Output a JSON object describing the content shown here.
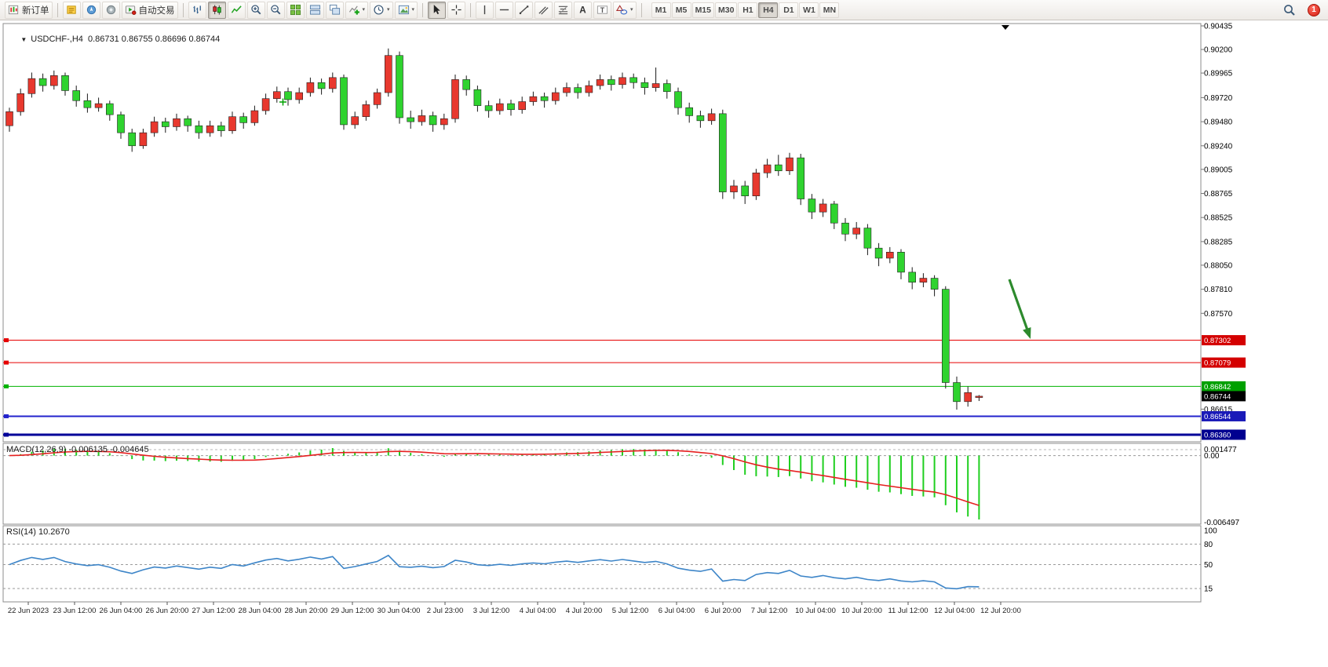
{
  "toolbar": {
    "new_order": "新订单",
    "auto_trading": "自动交易",
    "timeframes": [
      "M1",
      "M5",
      "M15",
      "M30",
      "H1",
      "H4",
      "D1",
      "W1",
      "MN"
    ],
    "active_timeframe": "H4",
    "notification_count": "1"
  },
  "chart_data": {
    "type": "candlestick",
    "symbol": "USDCHF-",
    "timeframe": "H4",
    "symbol_line": "USDCHF-,H4  0.86731 0.86755 0.86696 0.86744",
    "last_candle": {
      "open": "0.86731",
      "high": "0.86755",
      "low": "0.86696",
      "close": "0.86744"
    },
    "ylim": [
      0.8636,
      0.90435
    ],
    "colors": {
      "bull": "#e8382e",
      "bear": "#2fd32f",
      "wick": "#1a1a1a",
      "macd_hist": "#1fcf1f",
      "macd_signal": "#e62020",
      "rsi_line": "#3d85c8",
      "arrow": "#2d8a2d"
    },
    "price_axis_labels": [
      "0.90435",
      "0.90200",
      "0.89965",
      "0.89720",
      "0.89480",
      "0.89240",
      "0.89005",
      "0.88765",
      "0.88525",
      "0.88285",
      "0.88050",
      "0.87810",
      "0.87570",
      "0.86615"
    ],
    "hlines": [
      {
        "value": 0.87302,
        "label": "0.87302",
        "color": "#e60000",
        "badge": "#d40000",
        "width": 1
      },
      {
        "value": 0.87079,
        "label": "0.87079",
        "color": "#e60000",
        "badge": "#d40000",
        "width": 1
      },
      {
        "value": 0.86842,
        "label": "0.86842",
        "color": "#00b300",
        "badge": "#00a000",
        "width": 1
      },
      {
        "value": 0.86544,
        "label": "0.86544",
        "color": "#2323cc",
        "badge": "#1a1ab8",
        "width": 2
      },
      {
        "value": 0.8636,
        "label": "0.86360",
        "color": "#000099",
        "badge": "#000090",
        "width": 3
      }
    ],
    "current_price": {
      "value": 0.86744,
      "label": "0.86744",
      "badge": "#000000"
    },
    "candles": [
      [
        0.8944,
        0.8962,
        0.8938,
        0.8958
      ],
      [
        0.8958,
        0.8981,
        0.8954,
        0.8976
      ],
      [
        0.8976,
        0.8997,
        0.8972,
        0.8991
      ],
      [
        0.8991,
        0.8996,
        0.8978,
        0.8984
      ],
      [
        0.8984,
        0.8999,
        0.898,
        0.8994
      ],
      [
        0.8994,
        0.8997,
        0.8974,
        0.8979
      ],
      [
        0.8979,
        0.8984,
        0.8963,
        0.8969
      ],
      [
        0.8969,
        0.8976,
        0.8957,
        0.8962
      ],
      [
        0.8962,
        0.8972,
        0.8958,
        0.8966
      ],
      [
        0.8966,
        0.8969,
        0.8949,
        0.8955
      ],
      [
        0.8955,
        0.8958,
        0.8931,
        0.8937
      ],
      [
        0.8937,
        0.8941,
        0.8918,
        0.8924
      ],
      [
        0.8924,
        0.8941,
        0.8921,
        0.8937
      ],
      [
        0.8937,
        0.8953,
        0.8933,
        0.8948
      ],
      [
        0.8948,
        0.8952,
        0.8937,
        0.8943
      ],
      [
        0.8943,
        0.8956,
        0.8939,
        0.8951
      ],
      [
        0.8951,
        0.8954,
        0.8938,
        0.8944
      ],
      [
        0.8944,
        0.8949,
        0.8931,
        0.8937
      ],
      [
        0.8937,
        0.8949,
        0.8933,
        0.8944
      ],
      [
        0.8944,
        0.8948,
        0.8933,
        0.8939
      ],
      [
        0.8939,
        0.8958,
        0.8936,
        0.8953
      ],
      [
        0.8953,
        0.8957,
        0.8941,
        0.8947
      ],
      [
        0.8947,
        0.8964,
        0.8944,
        0.8959
      ],
      [
        0.8959,
        0.8976,
        0.8955,
        0.8971
      ],
      [
        0.8971,
        0.8983,
        0.8967,
        0.8978
      ],
      [
        0.8978,
        0.8982,
        0.8964,
        0.897
      ],
      [
        0.897,
        0.8982,
        0.8966,
        0.8977
      ],
      [
        0.8977,
        0.8992,
        0.8973,
        0.8987
      ],
      [
        0.8987,
        0.8991,
        0.8975,
        0.8981
      ],
      [
        0.8981,
        0.8997,
        0.8977,
        0.8992
      ],
      [
        0.8992,
        0.8995,
        0.894,
        0.8945
      ],
      [
        0.8945,
        0.8958,
        0.8941,
        0.8953
      ],
      [
        0.8953,
        0.8969,
        0.8949,
        0.8965
      ],
      [
        0.8965,
        0.8981,
        0.8961,
        0.8977
      ],
      [
        0.8977,
        0.9021,
        0.8973,
        0.9014
      ],
      [
        0.9014,
        0.9018,
        0.8946,
        0.8952
      ],
      [
        0.8952,
        0.8959,
        0.8941,
        0.8948
      ],
      [
        0.8948,
        0.896,
        0.8944,
        0.8954
      ],
      [
        0.8954,
        0.8958,
        0.8938,
        0.8945
      ],
      [
        0.8945,
        0.8956,
        0.894,
        0.8951
      ],
      [
        0.8951,
        0.8995,
        0.8947,
        0.899
      ],
      [
        0.899,
        0.8994,
        0.8974,
        0.898
      ],
      [
        0.898,
        0.8984,
        0.8958,
        0.8964
      ],
      [
        0.8964,
        0.8969,
        0.8952,
        0.8959
      ],
      [
        0.8959,
        0.8971,
        0.8955,
        0.8966
      ],
      [
        0.8966,
        0.897,
        0.8954,
        0.896
      ],
      [
        0.896,
        0.8973,
        0.8956,
        0.8968
      ],
      [
        0.8968,
        0.8978,
        0.8964,
        0.8973
      ],
      [
        0.8973,
        0.8977,
        0.8962,
        0.8969
      ],
      [
        0.8969,
        0.8982,
        0.8965,
        0.8977
      ],
      [
        0.8977,
        0.8987,
        0.8973,
        0.8982
      ],
      [
        0.8982,
        0.8986,
        0.8971,
        0.8977
      ],
      [
        0.8977,
        0.8989,
        0.8973,
        0.8984
      ],
      [
        0.8984,
        0.8995,
        0.898,
        0.899
      ],
      [
        0.899,
        0.8994,
        0.8979,
        0.8985
      ],
      [
        0.8985,
        0.8997,
        0.8981,
        0.8992
      ],
      [
        0.8992,
        0.8996,
        0.8981,
        0.8987
      ],
      [
        0.8987,
        0.8992,
        0.8975,
        0.8982
      ],
      [
        0.8982,
        0.9002,
        0.8978,
        0.8986
      ],
      [
        0.8986,
        0.899,
        0.8971,
        0.8978
      ],
      [
        0.8978,
        0.8982,
        0.8955,
        0.8962
      ],
      [
        0.8962,
        0.8967,
        0.8947,
        0.8954
      ],
      [
        0.8954,
        0.8959,
        0.8942,
        0.8949
      ],
      [
        0.8949,
        0.8961,
        0.8945,
        0.8956
      ],
      [
        0.8956,
        0.896,
        0.8871,
        0.8878
      ],
      [
        0.8878,
        0.889,
        0.8871,
        0.8884
      ],
      [
        0.8884,
        0.8889,
        0.8866,
        0.8874
      ],
      [
        0.8874,
        0.8901,
        0.887,
        0.8897
      ],
      [
        0.8897,
        0.8911,
        0.8892,
        0.8905
      ],
      [
        0.8905,
        0.8915,
        0.8894,
        0.8899
      ],
      [
        0.8899,
        0.8917,
        0.8895,
        0.8912
      ],
      [
        0.8912,
        0.8916,
        0.8865,
        0.8871
      ],
      [
        0.8871,
        0.8876,
        0.8851,
        0.8858
      ],
      [
        0.8858,
        0.8871,
        0.8853,
        0.8866
      ],
      [
        0.8866,
        0.8869,
        0.8841,
        0.8847
      ],
      [
        0.8847,
        0.8852,
        0.8829,
        0.8836
      ],
      [
        0.8836,
        0.8848,
        0.8831,
        0.8842
      ],
      [
        0.8842,
        0.8846,
        0.8815,
        0.8822
      ],
      [
        0.8822,
        0.8827,
        0.8804,
        0.8812
      ],
      [
        0.8812,
        0.8823,
        0.8807,
        0.8818
      ],
      [
        0.8818,
        0.8821,
        0.8791,
        0.8798
      ],
      [
        0.8798,
        0.8803,
        0.8781,
        0.8788
      ],
      [
        0.8788,
        0.8797,
        0.8783,
        0.8792
      ],
      [
        0.8792,
        0.8795,
        0.8774,
        0.8781
      ],
      [
        0.8781,
        0.8784,
        0.8682,
        0.8688
      ],
      [
        0.8688,
        0.8694,
        0.8661,
        0.8669
      ],
      [
        0.8669,
        0.8684,
        0.8664,
        0.8678
      ],
      [
        0.86731,
        0.86755,
        0.86696,
        0.86744
      ]
    ],
    "time_labels": [
      "22 Jun 2023",
      "23 Jun 12:00",
      "26 Jun 04:00",
      "26 Jun 20:00",
      "27 Jun 12:00",
      "28 Jun 04:00",
      "28 Jun 20:00",
      "29 Jun 12:00",
      "30 Jun 04:00",
      "2 Jul 23:00",
      "3 Jul 12:00",
      "4 Jul 04:00",
      "4 Jul 20:00",
      "5 Jul 12:00",
      "6 Jul 04:00",
      "6 Jul 20:00",
      "7 Jul 12:00",
      "10 Jul 04:00",
      "10 Jul 20:00",
      "11 Jul 12:00",
      "12 Jul 04:00",
      "12 Jul 20:00"
    ],
    "macd": {
      "label_text": "MACD(12,26,9) -0.006135 -0.004645",
      "params": "12,26,9",
      "value": "-0.006135",
      "signal_value": "-0.004645",
      "axis_labels": [
        "0.001477",
        "0.00",
        "-0.006497"
      ]
    },
    "rsi": {
      "label_text": "RSI(14) 10.2670",
      "period": "14",
      "value": "10.2670",
      "axis_labels": [
        "100",
        "80",
        "50",
        "15"
      ],
      "levels": [
        80,
        50,
        15
      ]
    },
    "annotation": {
      "type": "down-right-arrow",
      "color": "#2d8a2d"
    }
  }
}
